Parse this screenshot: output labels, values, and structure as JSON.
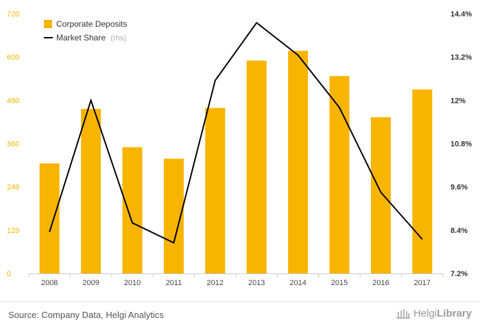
{
  "chart_data": {
    "type": "bar",
    "categories": [
      "2008",
      "2009",
      "2010",
      "2011",
      "2012",
      "2013",
      "2014",
      "2015",
      "2016",
      "2017"
    ],
    "series": [
      {
        "name": "Corporate Deposits",
        "type": "bar",
        "axis": "left",
        "color": "#f7b400",
        "values": [
          305,
          456,
          350,
          318,
          459,
          590,
          617,
          547,
          433,
          510
        ]
      },
      {
        "name": "Market Share",
        "type": "line",
        "axis": "right",
        "color": "#000000",
        "unit": "%",
        "values": [
          8.35,
          12.0,
          8.6,
          8.05,
          12.55,
          14.15,
          13.25,
          11.8,
          9.45,
          8.15
        ]
      }
    ],
    "y_left": {
      "ylim": [
        0,
        720
      ],
      "ticks": [
        "0",
        "120",
        "240",
        "360",
        "480",
        "600",
        "720"
      ]
    },
    "y_right": {
      "ylim": [
        7.2,
        14.4
      ],
      "ticks": [
        "7.2%",
        "8.4%",
        "9.6%",
        "10.8%",
        "12%",
        "13.2%",
        "14.4%"
      ]
    },
    "legend": {
      "position": "top-left",
      "items": [
        {
          "label": "Corporate Deposits",
          "suffix": ""
        },
        {
          "label": "Market Share",
          "suffix": "(rhs)"
        }
      ]
    },
    "grid": false
  },
  "footer": {
    "source": "Source: Company Data, Helgi Analytics",
    "logo_regular": "Helgi",
    "logo_bold": "Library"
  }
}
